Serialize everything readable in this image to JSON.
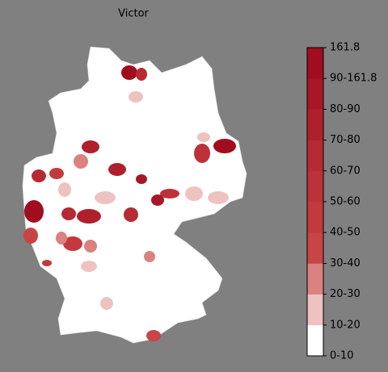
{
  "title": "Victor",
  "legend": {
    "labels": [
      "0-10",
      "10-20",
      "20-30",
      "30-40",
      "40-50",
      "50-60",
      "60-70",
      "70-80",
      "80-90",
      "90-161.8",
      "161.8"
    ],
    "colors": [
      "#ffffff",
      "#efc2c2",
      "#db8181",
      "#c94545",
      "#c33a3e",
      "#bd3238",
      "#b72a32",
      "#b0202c",
      "#a91726",
      "#a10c1f"
    ]
  }
}
